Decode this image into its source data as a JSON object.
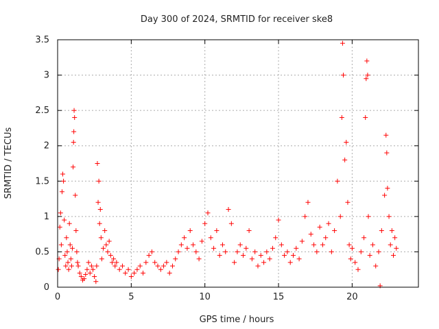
{
  "chart_data": {
    "type": "scatter",
    "title": "Day 300 of 2024, SRMTID for receiver ske8",
    "xlabel": "GPS time / hours",
    "ylabel": "SRMTID / TECUs",
    "xlim": [
      0,
      24.5
    ],
    "ylim": [
      0,
      3.5
    ],
    "xticks": [
      0,
      5,
      10,
      15,
      20
    ],
    "xtick_labels": [
      "0",
      "5",
      "10",
      "15",
      "20"
    ],
    "yticks": [
      0,
      0.5,
      1,
      1.5,
      2,
      2.5,
      3,
      3.5
    ],
    "ytick_labels": [
      "0",
      "0.5",
      "1",
      "1.5",
      "2",
      "2.5",
      "3",
      "3.5"
    ],
    "grid": true,
    "marker": "+",
    "color": "#ff0000",
    "series": [
      {
        "name": "SRMTID",
        "points": [
          [
            0.05,
            0.25
          ],
          [
            0.1,
            0.4
          ],
          [
            0.15,
            0.85
          ],
          [
            0.2,
            1.05
          ],
          [
            0.25,
            0.6
          ],
          [
            0.3,
            1.35
          ],
          [
            0.35,
            1.6
          ],
          [
            0.4,
            1.5
          ],
          [
            0.45,
            0.95
          ],
          [
            0.5,
            0.45
          ],
          [
            0.55,
            0.3
          ],
          [
            0.6,
            0.7
          ],
          [
            0.65,
            0.5
          ],
          [
            0.7,
            0.35
          ],
          [
            0.75,
            0.25
          ],
          [
            0.8,
            0.9
          ],
          [
            0.85,
            0.6
          ],
          [
            0.9,
            0.4
          ],
          [
            0.95,
            0.3
          ],
          [
            1.0,
            0.55
          ],
          [
            1.05,
            1.7
          ],
          [
            1.08,
            2.05
          ],
          [
            1.1,
            2.2
          ],
          [
            1.12,
            2.5
          ],
          [
            1.15,
            2.4
          ],
          [
            1.2,
            1.3
          ],
          [
            1.25,
            0.8
          ],
          [
            1.3,
            0.5
          ],
          [
            1.35,
            0.35
          ],
          [
            1.4,
            0.3
          ],
          [
            1.5,
            0.2
          ],
          [
            1.6,
            0.15
          ],
          [
            1.7,
            0.1
          ],
          [
            1.8,
            0.12
          ],
          [
            1.9,
            0.18
          ],
          [
            2.0,
            0.25
          ],
          [
            2.1,
            0.35
          ],
          [
            2.2,
            0.2
          ],
          [
            2.3,
            0.3
          ],
          [
            2.4,
            0.25
          ],
          [
            2.5,
            0.15
          ],
          [
            2.6,
            0.08
          ],
          [
            2.65,
            0.3
          ],
          [
            2.7,
            1.75
          ],
          [
            2.75,
            1.2
          ],
          [
            2.8,
            1.5
          ],
          [
            2.85,
            0.9
          ],
          [
            2.9,
            1.1
          ],
          [
            2.95,
            0.7
          ],
          [
            3.0,
            0.4
          ],
          [
            3.1,
            0.55
          ],
          [
            3.2,
            0.8
          ],
          [
            3.3,
            0.6
          ],
          [
            3.4,
            0.5
          ],
          [
            3.5,
            0.65
          ],
          [
            3.6,
            0.45
          ],
          [
            3.7,
            0.35
          ],
          [
            3.8,
            0.4
          ],
          [
            3.9,
            0.3
          ],
          [
            4.0,
            0.35
          ],
          [
            4.2,
            0.25
          ],
          [
            4.4,
            0.3
          ],
          [
            4.6,
            0.2
          ],
          [
            4.8,
            0.25
          ],
          [
            5.0,
            0.15
          ],
          [
            5.2,
            0.2
          ],
          [
            5.4,
            0.25
          ],
          [
            5.6,
            0.3
          ],
          [
            5.8,
            0.2
          ],
          [
            6.0,
            0.35
          ],
          [
            6.2,
            0.45
          ],
          [
            6.4,
            0.5
          ],
          [
            6.6,
            0.35
          ],
          [
            6.8,
            0.3
          ],
          [
            7.0,
            0.25
          ],
          [
            7.2,
            0.3
          ],
          [
            7.4,
            0.35
          ],
          [
            7.6,
            0.2
          ],
          [
            7.8,
            0.3
          ],
          [
            8.0,
            0.4
          ],
          [
            8.2,
            0.5
          ],
          [
            8.4,
            0.6
          ],
          [
            8.6,
            0.7
          ],
          [
            8.8,
            0.55
          ],
          [
            9.0,
            0.8
          ],
          [
            9.2,
            0.6
          ],
          [
            9.4,
            0.5
          ],
          [
            9.6,
            0.4
          ],
          [
            9.8,
            0.65
          ],
          [
            10.0,
            0.9
          ],
          [
            10.2,
            1.05
          ],
          [
            10.4,
            0.7
          ],
          [
            10.6,
            0.55
          ],
          [
            10.8,
            0.8
          ],
          [
            11.0,
            0.45
          ],
          [
            11.2,
            0.6
          ],
          [
            11.4,
            0.5
          ],
          [
            11.6,
            1.1
          ],
          [
            11.8,
            0.9
          ],
          [
            12.0,
            0.35
          ],
          [
            12.2,
            0.5
          ],
          [
            12.4,
            0.6
          ],
          [
            12.6,
            0.45
          ],
          [
            12.8,
            0.55
          ],
          [
            13.0,
            0.8
          ],
          [
            13.2,
            0.4
          ],
          [
            13.4,
            0.5
          ],
          [
            13.6,
            0.3
          ],
          [
            13.8,
            0.45
          ],
          [
            14.0,
            0.35
          ],
          [
            14.2,
            0.5
          ],
          [
            14.4,
            0.4
          ],
          [
            14.6,
            0.55
          ],
          [
            14.8,
            0.7
          ],
          [
            15.0,
            0.95
          ],
          [
            15.2,
            0.6
          ],
          [
            15.4,
            0.45
          ],
          [
            15.6,
            0.5
          ],
          [
            15.8,
            0.35
          ],
          [
            16.0,
            0.45
          ],
          [
            16.2,
            0.55
          ],
          [
            16.4,
            0.4
          ],
          [
            16.6,
            0.65
          ],
          [
            16.8,
            1.0
          ],
          [
            17.0,
            1.2
          ],
          [
            17.2,
            0.75
          ],
          [
            17.4,
            0.6
          ],
          [
            17.6,
            0.5
          ],
          [
            17.8,
            0.85
          ],
          [
            18.0,
            0.6
          ],
          [
            18.2,
            0.7
          ],
          [
            18.4,
            0.9
          ],
          [
            18.6,
            0.5
          ],
          [
            18.8,
            0.8
          ],
          [
            19.0,
            1.5
          ],
          [
            19.2,
            1.0
          ],
          [
            19.3,
            2.4
          ],
          [
            19.35,
            3.45
          ],
          [
            19.4,
            3.0
          ],
          [
            19.5,
            1.8
          ],
          [
            19.6,
            2.05
          ],
          [
            19.7,
            1.2
          ],
          [
            19.8,
            0.6
          ],
          [
            19.9,
            0.4
          ],
          [
            20.0,
            0.55
          ],
          [
            20.2,
            0.35
          ],
          [
            20.4,
            0.25
          ],
          [
            20.6,
            0.5
          ],
          [
            20.8,
            0.7
          ],
          [
            20.9,
            2.4
          ],
          [
            20.95,
            2.95
          ],
          [
            21.0,
            3.2
          ],
          [
            21.05,
            3.0
          ],
          [
            21.1,
            1.0
          ],
          [
            21.2,
            0.45
          ],
          [
            21.4,
            0.6
          ],
          [
            21.6,
            0.3
          ],
          [
            21.8,
            0.5
          ],
          [
            21.9,
            0.02
          ],
          [
            22.0,
            0.8
          ],
          [
            22.2,
            1.3
          ],
          [
            22.3,
            2.15
          ],
          [
            22.35,
            1.9
          ],
          [
            22.4,
            1.4
          ],
          [
            22.5,
            1.0
          ],
          [
            22.6,
            0.6
          ],
          [
            22.7,
            0.8
          ],
          [
            22.8,
            0.45
          ],
          [
            22.9,
            0.7
          ],
          [
            23.0,
            0.55
          ]
        ]
      }
    ]
  }
}
